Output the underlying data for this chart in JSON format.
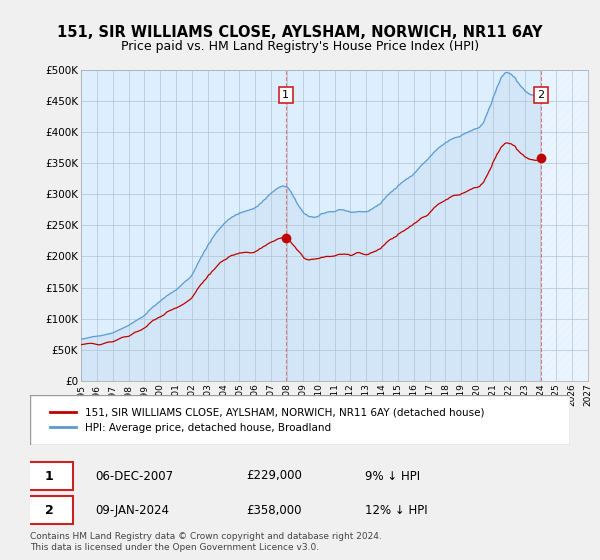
{
  "title": "151, SIR WILLIAMS CLOSE, AYLSHAM, NORWICH, NR11 6AY",
  "subtitle": "Price paid vs. HM Land Registry's House Price Index (HPI)",
  "title_fontsize": 10.5,
  "subtitle_fontsize": 9.5,
  "ylabel_ticks": [
    "£0",
    "£50K",
    "£100K",
    "£150K",
    "£200K",
    "£250K",
    "£300K",
    "£350K",
    "£400K",
    "£450K",
    "£500K"
  ],
  "ytick_values": [
    0,
    50000,
    100000,
    150000,
    200000,
    250000,
    300000,
    350000,
    400000,
    450000,
    500000
  ],
  "ylim": [
    0,
    500000
  ],
  "xlim_start": 1995.0,
  "xlim_end": 2027.0,
  "xtick_years": [
    1995,
    1996,
    1997,
    1998,
    1999,
    2000,
    2001,
    2002,
    2003,
    2004,
    2005,
    2006,
    2007,
    2008,
    2009,
    2010,
    2011,
    2012,
    2013,
    2014,
    2015,
    2016,
    2017,
    2018,
    2019,
    2020,
    2021,
    2022,
    2023,
    2024,
    2025,
    2026,
    2027
  ],
  "hpi_color": "#5b9bd5",
  "price_color": "#c00000",
  "vline_color": "#e06060",
  "background_color": "#f0f0f0",
  "plot_bg_color": "#ddeeff",
  "grid_color": "#b0c4d8",
  "shade_color": "#c8dff0",
  "marker1_x": 2007.92,
  "marker1_y": 229000,
  "marker1_label": "1",
  "marker2_x": 2024.03,
  "marker2_y": 358000,
  "marker2_label": "2",
  "legend_line1": "151, SIR WILLIAMS CLOSE, AYLSHAM, NORWICH, NR11 6AY (detached house)",
  "legend_line2": "HPI: Average price, detached house, Broadland",
  "annotation1_date": "06-DEC-2007",
  "annotation1_price": "£229,000",
  "annotation1_hpi": "9% ↓ HPI",
  "annotation2_date": "09-JAN-2024",
  "annotation2_price": "£358,000",
  "annotation2_hpi": "12% ↓ HPI",
  "footer": "Contains HM Land Registry data © Crown copyright and database right 2024.\nThis data is licensed under the Open Government Licence v3.0.",
  "hpi_data_x": [
    1995.0,
    1995.083,
    1995.167,
    1995.25,
    1995.333,
    1995.417,
    1995.5,
    1995.583,
    1995.667,
    1995.75,
    1995.833,
    1995.917,
    1996.0,
    1996.083,
    1996.167,
    1996.25,
    1996.333,
    1996.417,
    1996.5,
    1996.583,
    1996.667,
    1996.75,
    1996.833,
    1996.917,
    1997.0,
    1997.083,
    1997.167,
    1997.25,
    1997.333,
    1997.417,
    1997.5,
    1997.583,
    1997.667,
    1997.75,
    1997.833,
    1997.917,
    1998.0,
    1998.083,
    1998.167,
    1998.25,
    1998.333,
    1998.417,
    1998.5,
    1998.583,
    1998.667,
    1998.75,
    1998.833,
    1998.917,
    1999.0,
    1999.083,
    1999.167,
    1999.25,
    1999.333,
    1999.417,
    1999.5,
    1999.583,
    1999.667,
    1999.75,
    1999.833,
    1999.917,
    2000.0,
    2000.083,
    2000.167,
    2000.25,
    2000.333,
    2000.417,
    2000.5,
    2000.583,
    2000.667,
    2000.75,
    2000.833,
    2000.917,
    2001.0,
    2001.083,
    2001.167,
    2001.25,
    2001.333,
    2001.417,
    2001.5,
    2001.583,
    2001.667,
    2001.75,
    2001.833,
    2001.917,
    2002.0,
    2002.083,
    2002.167,
    2002.25,
    2002.333,
    2002.417,
    2002.5,
    2002.583,
    2002.667,
    2002.75,
    2002.833,
    2002.917,
    2003.0,
    2003.083,
    2003.167,
    2003.25,
    2003.333,
    2003.417,
    2003.5,
    2003.583,
    2003.667,
    2003.75,
    2003.833,
    2003.917,
    2004.0,
    2004.083,
    2004.167,
    2004.25,
    2004.333,
    2004.417,
    2004.5,
    2004.583,
    2004.667,
    2004.75,
    2004.833,
    2004.917,
    2005.0,
    2005.083,
    2005.167,
    2005.25,
    2005.333,
    2005.417,
    2005.5,
    2005.583,
    2005.667,
    2005.75,
    2005.833,
    2005.917,
    2006.0,
    2006.083,
    2006.167,
    2006.25,
    2006.333,
    2006.417,
    2006.5,
    2006.583,
    2006.667,
    2006.75,
    2006.833,
    2006.917,
    2007.0,
    2007.083,
    2007.167,
    2007.25,
    2007.333,
    2007.417,
    2007.5,
    2007.583,
    2007.667,
    2007.75,
    2007.833,
    2007.917,
    2008.0,
    2008.083,
    2008.167,
    2008.25,
    2008.333,
    2008.417,
    2008.5,
    2008.583,
    2008.667,
    2008.75,
    2008.833,
    2008.917,
    2009.0,
    2009.083,
    2009.167,
    2009.25,
    2009.333,
    2009.417,
    2009.5,
    2009.583,
    2009.667,
    2009.75,
    2009.833,
    2009.917,
    2010.0,
    2010.083,
    2010.167,
    2010.25,
    2010.333,
    2010.417,
    2010.5,
    2010.583,
    2010.667,
    2010.75,
    2010.833,
    2010.917,
    2011.0,
    2011.083,
    2011.167,
    2011.25,
    2011.333,
    2011.417,
    2011.5,
    2011.583,
    2011.667,
    2011.75,
    2011.833,
    2011.917,
    2012.0,
    2012.083,
    2012.167,
    2012.25,
    2012.333,
    2012.417,
    2012.5,
    2012.583,
    2012.667,
    2012.75,
    2012.833,
    2012.917,
    2013.0,
    2013.083,
    2013.167,
    2013.25,
    2013.333,
    2013.417,
    2013.5,
    2013.583,
    2013.667,
    2013.75,
    2013.833,
    2013.917,
    2014.0,
    2014.083,
    2014.167,
    2014.25,
    2014.333,
    2014.417,
    2014.5,
    2014.583,
    2014.667,
    2014.75,
    2014.833,
    2014.917,
    2015.0,
    2015.083,
    2015.167,
    2015.25,
    2015.333,
    2015.417,
    2015.5,
    2015.583,
    2015.667,
    2015.75,
    2015.833,
    2015.917,
    2016.0,
    2016.083,
    2016.167,
    2016.25,
    2016.333,
    2016.417,
    2016.5,
    2016.583,
    2016.667,
    2016.75,
    2016.833,
    2016.917,
    2017.0,
    2017.083,
    2017.167,
    2017.25,
    2017.333,
    2017.417,
    2017.5,
    2017.583,
    2017.667,
    2017.75,
    2017.833,
    2017.917,
    2018.0,
    2018.083,
    2018.167,
    2018.25,
    2018.333,
    2018.417,
    2018.5,
    2018.583,
    2018.667,
    2018.75,
    2018.833,
    2018.917,
    2019.0,
    2019.083,
    2019.167,
    2019.25,
    2019.333,
    2019.417,
    2019.5,
    2019.583,
    2019.667,
    2019.75,
    2019.833,
    2019.917,
    2020.0,
    2020.083,
    2020.167,
    2020.25,
    2020.333,
    2020.417,
    2020.5,
    2020.583,
    2020.667,
    2020.75,
    2020.833,
    2020.917,
    2021.0,
    2021.083,
    2021.167,
    2021.25,
    2021.333,
    2021.417,
    2021.5,
    2021.583,
    2021.667,
    2021.75,
    2021.833,
    2021.917,
    2022.0,
    2022.083,
    2022.167,
    2022.25,
    2022.333,
    2022.417,
    2022.5,
    2022.583,
    2022.667,
    2022.75,
    2022.833,
    2022.917,
    2023.0,
    2023.083,
    2023.167,
    2023.25,
    2023.333,
    2023.417,
    2023.5,
    2023.583,
    2023.667,
    2023.75,
    2023.833,
    2023.917,
    2024.0
  ],
  "hpi_data_y": [
    67000,
    67200,
    67500,
    68000,
    68500,
    69000,
    69500,
    70000,
    70500,
    71000,
    71200,
    71500,
    71800,
    72000,
    72200,
    72500,
    73000,
    73500,
    74000,
    74500,
    75000,
    75500,
    76000,
    76500,
    77000,
    78000,
    79000,
    80000,
    81000,
    82000,
    83000,
    84000,
    85000,
    86000,
    87000,
    88000,
    89000,
    90500,
    92000,
    93000,
    94500,
    96000,
    97000,
    98500,
    100000,
    101000,
    102000,
    103500,
    105000,
    107000,
    109000,
    112000,
    114000,
    116000,
    118000,
    120000,
    121000,
    123000,
    125000,
    126500,
    128000,
    130000,
    132000,
    133000,
    135000,
    137000,
    138000,
    139500,
    141000,
    142000,
    143500,
    145000,
    146000,
    148000,
    150000,
    152000,
    154000,
    156000,
    158000,
    160000,
    161500,
    163000,
    165000,
    167000,
    170000,
    174000,
    178000,
    182000,
    187000,
    191000,
    195000,
    199000,
    202000,
    207000,
    210000,
    213000,
    218000,
    221000,
    223000,
    228000,
    231000,
    234000,
    237000,
    240000,
    242000,
    245000,
    247000,
    249000,
    252000,
    254000,
    256000,
    258000,
    260000,
    261000,
    263000,
    264000,
    265000,
    267000,
    267500,
    268000,
    270000,
    270500,
    271000,
    272000,
    272500,
    273000,
    274000,
    274500,
    275000,
    276000,
    276500,
    277000,
    279000,
    280000,
    281000,
    284000,
    285500,
    287000,
    290000,
    291500,
    293000,
    296000,
    298000,
    300000,
    302000,
    303500,
    305000,
    307000,
    308500,
    310000,
    311000,
    312000,
    313000,
    313500,
    312500,
    312000,
    312000,
    310000,
    307000,
    304000,
    300000,
    296000,
    293000,
    288000,
    284000,
    281000,
    278000,
    275000,
    272000,
    269000,
    268000,
    267000,
    265000,
    264000,
    264000,
    264000,
    263000,
    263000,
    263500,
    264000,
    265000,
    267000,
    269000,
    269000,
    269500,
    270000,
    271000,
    271500,
    272000,
    272000,
    272000,
    272000,
    272000,
    273000,
    274000,
    275000,
    275500,
    275000,
    275000,
    275000,
    274000,
    273000,
    273000,
    272500,
    271000,
    271000,
    271500,
    271000,
    271500,
    272000,
    272000,
    272500,
    272000,
    272000,
    272000,
    272000,
    272000,
    272500,
    273000,
    275000,
    276000,
    277000,
    279000,
    280000,
    281000,
    283000,
    284000,
    285000,
    289000,
    291000,
    293000,
    296000,
    298000,
    300000,
    302000,
    304000,
    305000,
    308000,
    309000,
    310000,
    314000,
    315000,
    317000,
    319000,
    320500,
    322000,
    324000,
    325000,
    326000,
    328000,
    329000,
    330000,
    333000,
    335000,
    337000,
    340000,
    342000,
    345000,
    347000,
    349000,
    351000,
    353000,
    355000,
    357000,
    360000,
    362000,
    364000,
    367000,
    369000,
    371000,
    373000,
    375000,
    376500,
    378000,
    379500,
    381000,
    383000,
    384000,
    385000,
    387000,
    388000,
    389000,
    390000,
    391000,
    391500,
    392000,
    392500,
    392500,
    395000,
    396000,
    397000,
    398000,
    399000,
    400000,
    401000,
    402000,
    402500,
    404000,
    405000,
    405500,
    406000,
    407000,
    408000,
    411000,
    413000,
    416000,
    422000,
    427000,
    432000,
    438000,
    442000,
    447000,
    455000,
    460000,
    465000,
    472000,
    476000,
    481000,
    487000,
    490000,
    492000,
    495000,
    496000,
    496000,
    495000,
    494000,
    493000,
    490000,
    489000,
    487000,
    482000,
    480000,
    477000,
    474000,
    472000,
    470000,
    467000,
    465000,
    464000,
    462000,
    461000,
    460000,
    460000,
    459000,
    459000,
    459500,
    460000,
    460500,
    461000
  ],
  "price_data_x": [
    1995.75,
    2007.92,
    2024.03
  ],
  "price_data_y": [
    57000,
    229000,
    358000
  ]
}
